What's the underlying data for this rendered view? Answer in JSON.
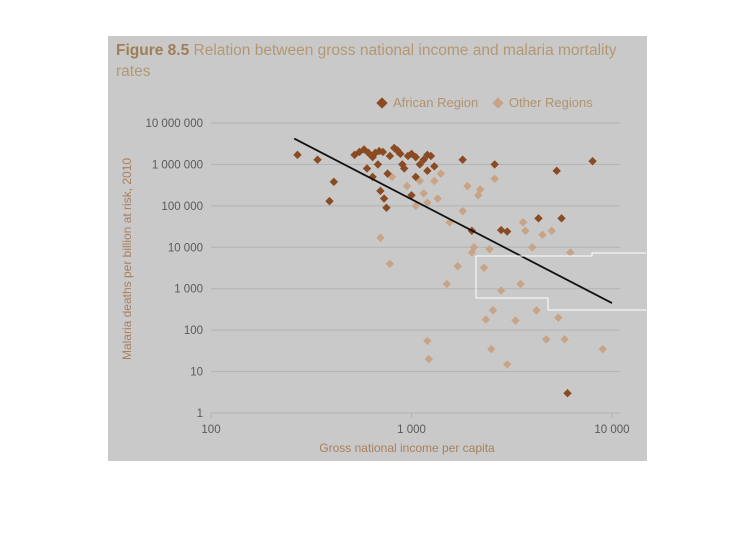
{
  "figure": {
    "label": "Figure 8.5",
    "title": "Relation between gross national income and malaria mortality rates"
  },
  "colors": {
    "panel_bg": "#c9c9c9",
    "african": "#8a4a22",
    "other": "#c9a385",
    "trend": "#111111",
    "grid": "#b3b3b3"
  },
  "chart_data": {
    "type": "scatter",
    "xscale": "log",
    "yscale": "log",
    "xlim": [
      100,
      10000
    ],
    "ylim": [
      1,
      10000000
    ],
    "xlabel": "Gross national income per capita",
    "ylabel": "Malaria deaths per billion at risk, 2010",
    "x_ticks": [
      "100",
      "1 000",
      "10 000"
    ],
    "y_ticks": [
      "1",
      "10",
      "100",
      "1 000",
      "10 000",
      "100 000",
      "1 000 000",
      "10 000 000"
    ],
    "grid": true,
    "legend_position": "top-right",
    "series": [
      {
        "name": "African Region",
        "points": [
          [
            270,
            1700000
          ],
          [
            340,
            1300000
          ],
          [
            410,
            380000
          ],
          [
            390,
            130000
          ],
          [
            520,
            1700000
          ],
          [
            550,
            2000000
          ],
          [
            580,
            2300000
          ],
          [
            610,
            1900000
          ],
          [
            640,
            1500000
          ],
          [
            660,
            1900000
          ],
          [
            690,
            2100000
          ],
          [
            720,
            2000000
          ],
          [
            600,
            800000
          ],
          [
            640,
            500000
          ],
          [
            680,
            1000000
          ],
          [
            700,
            230000
          ],
          [
            730,
            150000
          ],
          [
            760,
            600000
          ],
          [
            780,
            1600000
          ],
          [
            820,
            2500000
          ],
          [
            850,
            2200000
          ],
          [
            880,
            1800000
          ],
          [
            900,
            1000000
          ],
          [
            920,
            800000
          ],
          [
            960,
            1600000
          ],
          [
            1000,
            1800000
          ],
          [
            1050,
            1500000
          ],
          [
            1100,
            1000000
          ],
          [
            1150,
            1300000
          ],
          [
            1200,
            1700000
          ],
          [
            1250,
            1600000
          ],
          [
            1300,
            900000
          ],
          [
            1050,
            500000
          ],
          [
            1200,
            700000
          ],
          [
            750,
            90000
          ],
          [
            1000,
            180000
          ],
          [
            1800,
            1300000
          ],
          [
            2000,
            25000
          ],
          [
            2600,
            1000000
          ],
          [
            2800,
            26000
          ],
          [
            3000,
            24000
          ],
          [
            4300,
            50000
          ],
          [
            5300,
            700000
          ],
          [
            5600,
            50000
          ],
          [
            6000,
            3
          ],
          [
            8000,
            1200000
          ]
        ]
      },
      {
        "name": "Other Regions",
        "points": [
          [
            700,
            17000
          ],
          [
            780,
            4000
          ],
          [
            800,
            500000
          ],
          [
            850,
            2000000
          ],
          [
            950,
            300000
          ],
          [
            1050,
            100000
          ],
          [
            1100,
            400000
          ],
          [
            1150,
            200000
          ],
          [
            1200,
            120000
          ],
          [
            1200,
            55
          ],
          [
            1220,
            20
          ],
          [
            1300,
            400000
          ],
          [
            1350,
            150000
          ],
          [
            1400,
            600000
          ],
          [
            1500,
            1300
          ],
          [
            1550,
            40000
          ],
          [
            1700,
            3500
          ],
          [
            1800,
            75000
          ],
          [
            1900,
            300000
          ],
          [
            2000,
            7500
          ],
          [
            2050,
            10000
          ],
          [
            2150,
            180000
          ],
          [
            2200,
            250000
          ],
          [
            2300,
            3200
          ],
          [
            2350,
            180
          ],
          [
            2450,
            9000
          ],
          [
            2500,
            35
          ],
          [
            2550,
            300
          ],
          [
            2600,
            450000
          ],
          [
            2800,
            900
          ],
          [
            3000,
            15
          ],
          [
            3300,
            170
          ],
          [
            3500,
            1300
          ],
          [
            3600,
            40000
          ],
          [
            3700,
            25000
          ],
          [
            4000,
            10000
          ],
          [
            4200,
            300
          ],
          [
            4500,
            20000
          ],
          [
            4700,
            60
          ],
          [
            5000,
            25000
          ],
          [
            5400,
            200
          ],
          [
            5800,
            60
          ],
          [
            6200,
            7500
          ],
          [
            9000,
            35
          ]
        ]
      }
    ],
    "trendline": [
      [
        260,
        4200000
      ],
      [
        10000,
        450
      ]
    ]
  }
}
